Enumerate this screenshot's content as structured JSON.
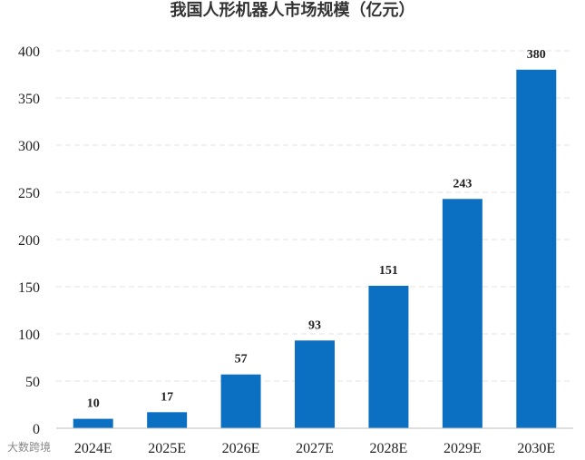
{
  "chart_data": {
    "type": "bar",
    "title": "我国人形机器人市场规模（亿元）",
    "xlabel": "",
    "ylabel": "",
    "categories": [
      "2024E",
      "2025E",
      "2026E",
      "2027E",
      "2028E",
      "2029E",
      "2030E"
    ],
    "values": [
      10,
      17,
      57,
      93,
      151,
      243,
      380
    ],
    "ylim": [
      0,
      400
    ],
    "yticks": [
      0,
      50,
      100,
      150,
      200,
      250,
      300,
      350,
      400
    ],
    "grid": true,
    "legend": "none",
    "bar_color": "#0b6fc2"
  },
  "watermark": {
    "text": "大数跨境"
  }
}
